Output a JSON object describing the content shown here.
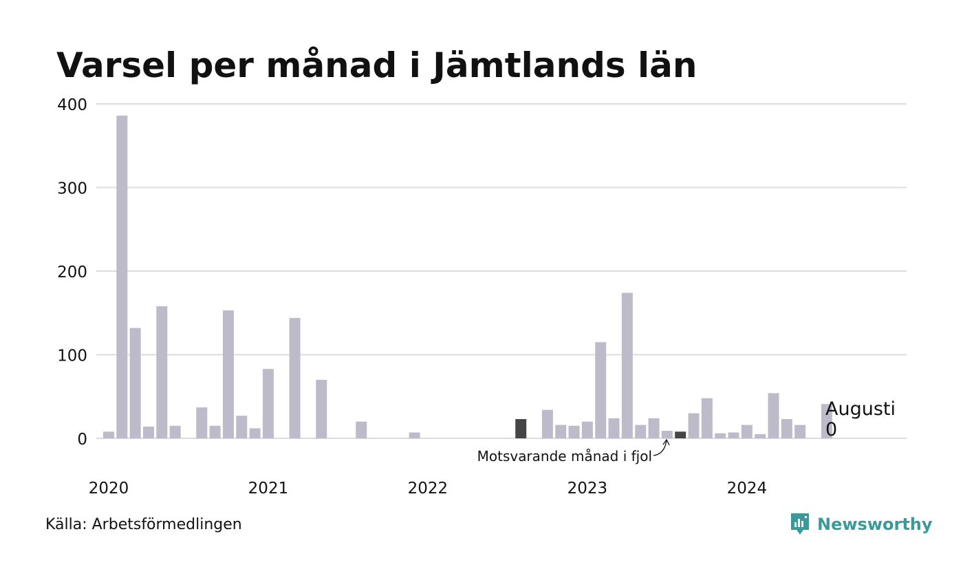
{
  "title": "Varsel per månad i Jämtlands län",
  "source": "Källa: Arbetsförmedlingen",
  "brand": "Newsworthy",
  "colors": {
    "bar": "#bdbbc9",
    "highlight": "#454545",
    "grid": "#dcdcdc",
    "brand": "#3a9a9a"
  },
  "chart_data": {
    "type": "bar",
    "title": "Varsel per månad i Jämtlands län",
    "xlabel": "",
    "ylabel": "",
    "ylim": [
      0,
      400
    ],
    "yticks": [
      0,
      100,
      200,
      300,
      400
    ],
    "xtick_labels": [
      "2020",
      "2021",
      "2022",
      "2023",
      "2024"
    ],
    "grid": true,
    "categories": [
      "2020-01",
      "2020-02",
      "2020-03",
      "2020-04",
      "2020-05",
      "2020-06",
      "2020-07",
      "2020-08",
      "2020-09",
      "2020-10",
      "2020-11",
      "2020-12",
      "2021-01",
      "2021-02",
      "2021-03",
      "2021-04",
      "2021-05",
      "2021-06",
      "2021-07",
      "2021-08",
      "2021-09",
      "2021-10",
      "2021-11",
      "2021-12",
      "2022-01",
      "2022-02",
      "2022-03",
      "2022-04",
      "2022-05",
      "2022-06",
      "2022-07",
      "2022-08",
      "2022-09",
      "2022-10",
      "2022-11",
      "2022-12",
      "2023-01",
      "2023-02",
      "2023-03",
      "2023-04",
      "2023-05",
      "2023-06",
      "2023-07",
      "2023-08",
      "2023-09",
      "2023-10",
      "2023-11",
      "2023-12",
      "2024-01",
      "2024-02",
      "2024-03",
      "2024-04",
      "2024-05",
      "2024-06",
      "2024-07",
      "2024-08"
    ],
    "values": [
      8,
      386,
      132,
      14,
      158,
      15,
      0,
      37,
      15,
      153,
      27,
      12,
      83,
      0,
      144,
      0,
      70,
      0,
      0,
      20,
      0,
      0,
      0,
      7,
      0,
      0,
      0,
      0,
      0,
      0,
      0,
      23,
      0,
      34,
      16,
      15,
      20,
      115,
      24,
      174,
      16,
      24,
      9,
      8,
      30,
      48,
      6,
      7,
      16,
      5,
      54,
      23,
      16,
      0,
      41,
      0
    ],
    "highlighted": [
      "2022-08",
      "2023-08"
    ],
    "annotations": {
      "current_label": "Augusti",
      "current_value": "0",
      "previous_year": "Motsvarande månad i fjol"
    }
  }
}
